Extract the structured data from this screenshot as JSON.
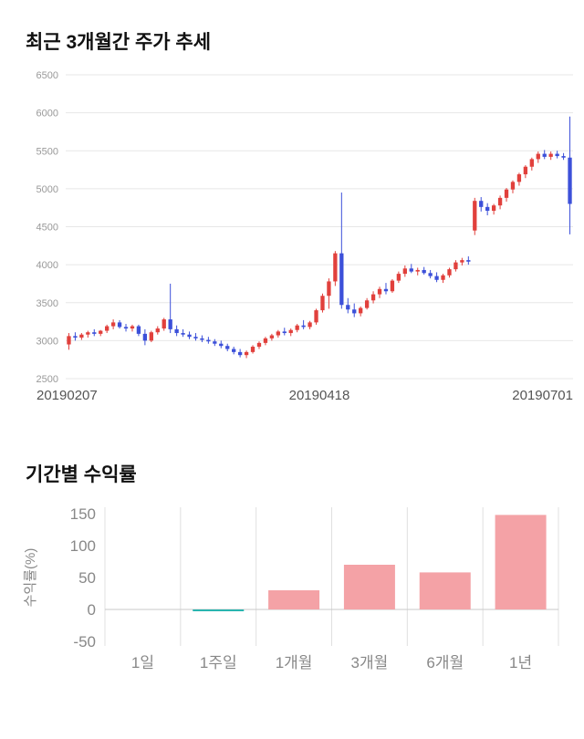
{
  "price_section": {
    "title": "최근 3개월간 주가 추세"
  },
  "returns_section": {
    "title": "기간별 수익률"
  },
  "chart_data": [
    {
      "type": "candlestick",
      "title": "최근 3개월간 주가 추세",
      "ylim": [
        2500,
        6500
      ],
      "yticks": [
        2500,
        3000,
        3500,
        4000,
        4500,
        5000,
        5500,
        6000,
        6500
      ],
      "xticks": [
        "20190207",
        "20190418",
        "20190701"
      ],
      "colors": {
        "up": "#e1403c",
        "down": "#3c50d9",
        "grid": "#e7e7e7",
        "ytick_text": "#999999",
        "xtick_text": "#555555"
      },
      "candles": [
        [
          2950,
          3100,
          2880,
          3060
        ],
        [
          3060,
          3110,
          3000,
          3040
        ],
        [
          3040,
          3100,
          3010,
          3080
        ],
        [
          3080,
          3130,
          3040,
          3110
        ],
        [
          3110,
          3150,
          3060,
          3090
        ],
        [
          3090,
          3140,
          3060,
          3130
        ],
        [
          3130,
          3210,
          3100,
          3190
        ],
        [
          3190,
          3280,
          3150,
          3240
        ],
        [
          3240,
          3270,
          3160,
          3180
        ],
        [
          3180,
          3220,
          3120,
          3160
        ],
        [
          3160,
          3210,
          3120,
          3190
        ],
        [
          3190,
          3210,
          3060,
          3090
        ],
        [
          3090,
          3150,
          2940,
          3000
        ],
        [
          3000,
          3130,
          2980,
          3110
        ],
        [
          3110,
          3190,
          3080,
          3160
        ],
        [
          3160,
          3300,
          3130,
          3280
        ],
        [
          3280,
          3750,
          3100,
          3150
        ],
        [
          3150,
          3200,
          3060,
          3100
        ],
        [
          3100,
          3150,
          3050,
          3080
        ],
        [
          3080,
          3120,
          3020,
          3050
        ],
        [
          3050,
          3100,
          3000,
          3030
        ],
        [
          3030,
          3070,
          2980,
          3010
        ],
        [
          3010,
          3050,
          2960,
          2990
        ],
        [
          2990,
          3020,
          2930,
          2960
        ],
        [
          2960,
          3000,
          2900,
          2930
        ],
        [
          2930,
          2960,
          2860,
          2890
        ],
        [
          2890,
          2920,
          2820,
          2850
        ],
        [
          2850,
          2890,
          2780,
          2810
        ],
        [
          2810,
          2870,
          2770,
          2850
        ],
        [
          2850,
          2940,
          2830,
          2920
        ],
        [
          2920,
          2990,
          2890,
          2970
        ],
        [
          2970,
          3050,
          2940,
          3030
        ],
        [
          3030,
          3090,
          3000,
          3070
        ],
        [
          3070,
          3140,
          3040,
          3120
        ],
        [
          3120,
          3170,
          3070,
          3100
        ],
        [
          3100,
          3160,
          3060,
          3140
        ],
        [
          3140,
          3220,
          3110,
          3200
        ],
        [
          3200,
          3270,
          3150,
          3180
        ],
        [
          3180,
          3260,
          3150,
          3240
        ],
        [
          3240,
          3420,
          3210,
          3400
        ],
        [
          3400,
          3620,
          3370,
          3590
        ],
        [
          3590,
          3820,
          3420,
          3780
        ],
        [
          3780,
          4180,
          3720,
          4150
        ],
        [
          4150,
          4950,
          3420,
          3470
        ],
        [
          3470,
          3560,
          3360,
          3410
        ],
        [
          3410,
          3490,
          3310,
          3360
        ],
        [
          3360,
          3450,
          3320,
          3430
        ],
        [
          3430,
          3560,
          3410,
          3530
        ],
        [
          3530,
          3650,
          3490,
          3610
        ],
        [
          3610,
          3710,
          3560,
          3680
        ],
        [
          3680,
          3760,
          3610,
          3650
        ],
        [
          3650,
          3810,
          3630,
          3790
        ],
        [
          3790,
          3910,
          3760,
          3880
        ],
        [
          3880,
          3990,
          3840,
          3950
        ],
        [
          3950,
          4010,
          3890,
          3910
        ],
        [
          3910,
          3960,
          3860,
          3930
        ],
        [
          3930,
          3970,
          3870,
          3890
        ],
        [
          3890,
          3930,
          3820,
          3850
        ],
        [
          3850,
          3900,
          3770,
          3800
        ],
        [
          3800,
          3880,
          3760,
          3860
        ],
        [
          3860,
          3960,
          3830,
          3940
        ],
        [
          3940,
          4060,
          3910,
          4030
        ],
        [
          4030,
          4090,
          3990,
          4060
        ],
        [
          4060,
          4110,
          4000,
          4040
        ],
        [
          4450,
          4880,
          4390,
          4840
        ],
        [
          4840,
          4890,
          4700,
          4760
        ],
        [
          4760,
          4810,
          4650,
          4710
        ],
        [
          4710,
          4800,
          4660,
          4780
        ],
        [
          4780,
          4910,
          4730,
          4880
        ],
        [
          4880,
          5010,
          4830,
          4990
        ],
        [
          4990,
          5110,
          4940,
          5090
        ],
        [
          5090,
          5210,
          5040,
          5190
        ],
        [
          5190,
          5310,
          5140,
          5290
        ],
        [
          5290,
          5410,
          5240,
          5390
        ],
        [
          5390,
          5490,
          5340,
          5460
        ],
        [
          5460,
          5510,
          5390,
          5420
        ],
        [
          5420,
          5490,
          5380,
          5460
        ],
        [
          5460,
          5500,
          5400,
          5430
        ],
        [
          5430,
          5470,
          5380,
          5410
        ],
        [
          5410,
          5950,
          4400,
          4800
        ]
      ]
    },
    {
      "type": "bar",
      "title": "기간별 수익률",
      "ylabel": "수익률(%)",
      "categories": [
        "1일",
        "1주일",
        "1개월",
        "3개월",
        "6개월",
        "1년"
      ],
      "values": [
        0,
        -2,
        30,
        70,
        58,
        148
      ],
      "ylim": [
        -50,
        150
      ],
      "yticks": [
        -50,
        0,
        50,
        100,
        150
      ],
      "colors": {
        "positive": "#f4a2a6",
        "negative": "#2ab5b0",
        "grid": "#e0e0e0",
        "axis": "#c9c9c9",
        "text": "#888888"
      }
    }
  ]
}
